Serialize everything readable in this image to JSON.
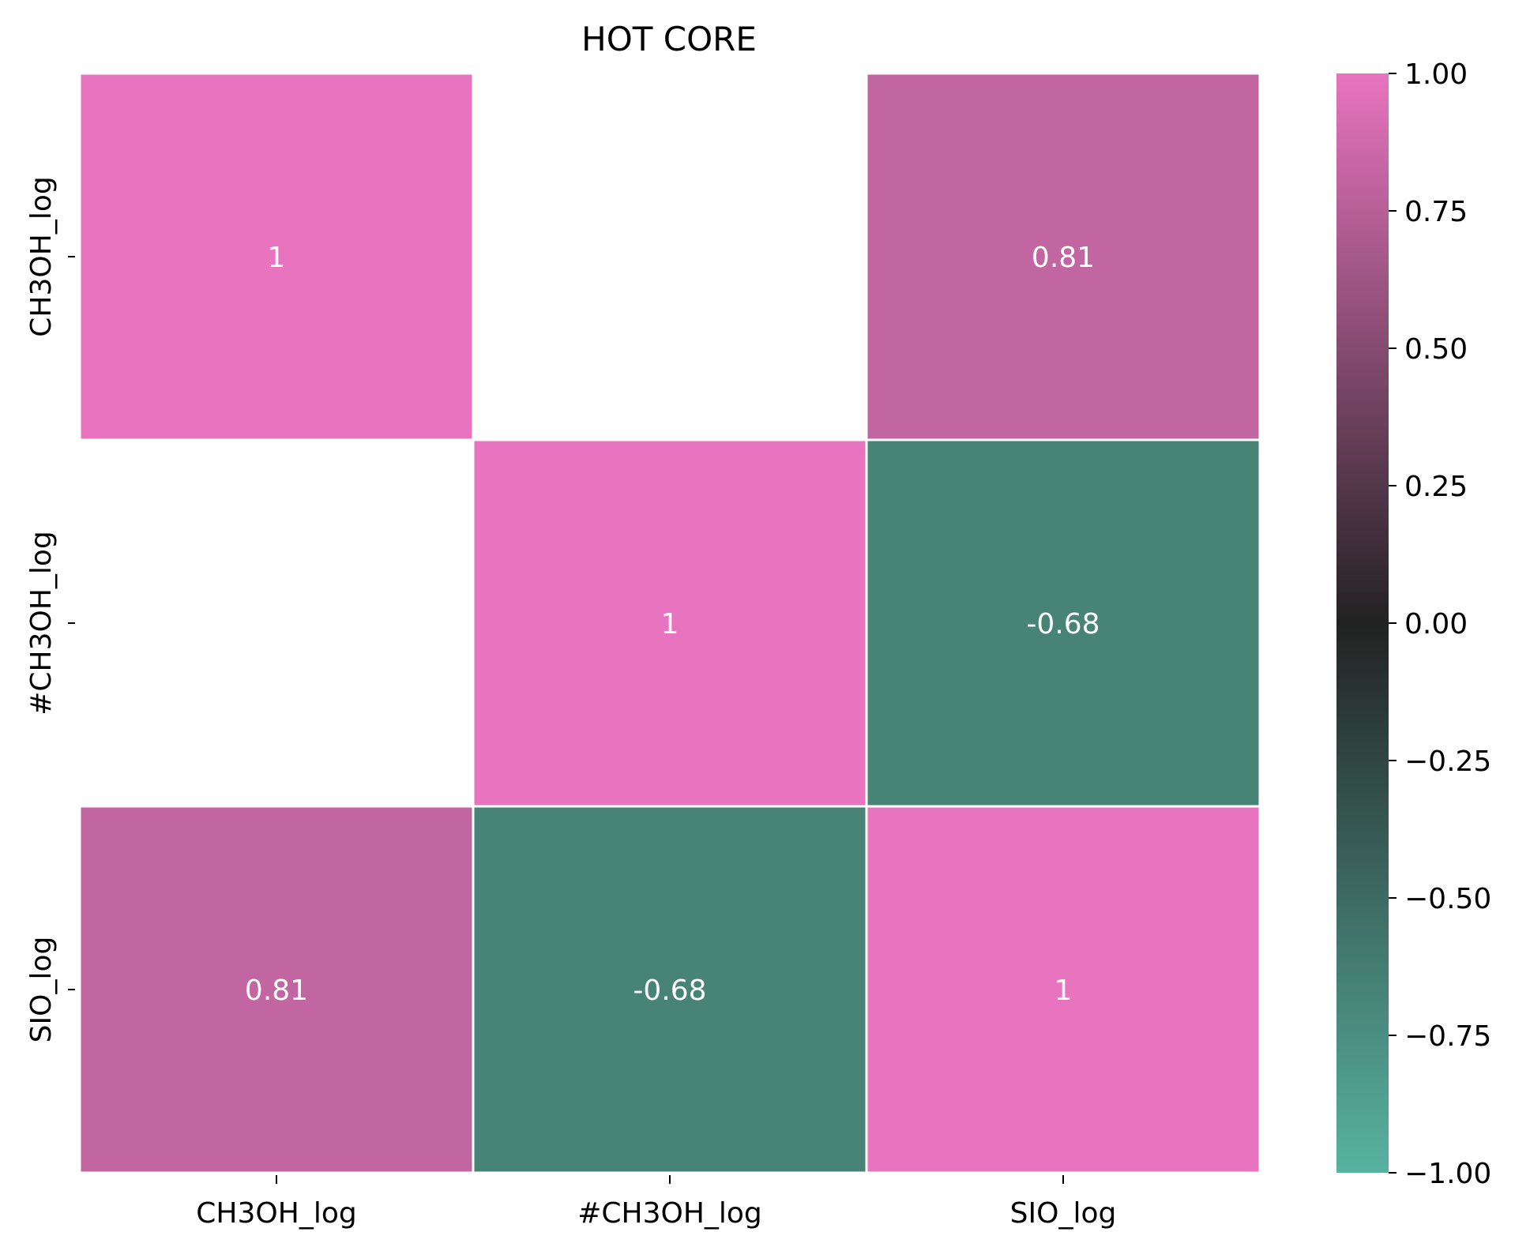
{
  "chart_data": {
    "type": "heatmap",
    "title": "HOT CORE",
    "row_labels": [
      "CH3OH_log",
      "#CH3OH_log",
      "SIO_log"
    ],
    "column_labels": [
      "CH3OH_log",
      "#CH3OH_log",
      "SIO_log"
    ],
    "values": [
      [
        1,
        null,
        0.81
      ],
      [
        null,
        1,
        -0.68
      ],
      [
        0.81,
        -0.68,
        1
      ]
    ],
    "annotations": [
      [
        "1",
        "",
        "0.81"
      ],
      [
        "",
        "1",
        "-0.68"
      ],
      [
        "0.81",
        "-0.68",
        "1"
      ]
    ],
    "colorbar": {
      "vmin": -1.0,
      "vmax": 1.0,
      "ticks": [
        1.0,
        0.75,
        0.5,
        0.25,
        0.0,
        -0.25,
        -0.5,
        -0.75,
        -1.0
      ],
      "tick_labels": [
        "1.00",
        "0.75",
        "0.50",
        "0.25",
        "0.00",
        "−0.25",
        "−0.50",
        "−0.75",
        "−1.00"
      ]
    },
    "colormap": {
      "low": "#58b3a1",
      "mid": "#222222",
      "high": "#e874bf"
    },
    "cell_colors": [
      [
        "#e874bf",
        null,
        "#c266a2"
      ],
      [
        null,
        "#e874bf",
        "#478476"
      ],
      [
        "#c266a2",
        "#478476",
        "#e874bf"
      ]
    ],
    "annotation_color": "#ffffff",
    "cell_separator_color": "#ffffff",
    "grid": false,
    "legend": "colorbar-right"
  }
}
